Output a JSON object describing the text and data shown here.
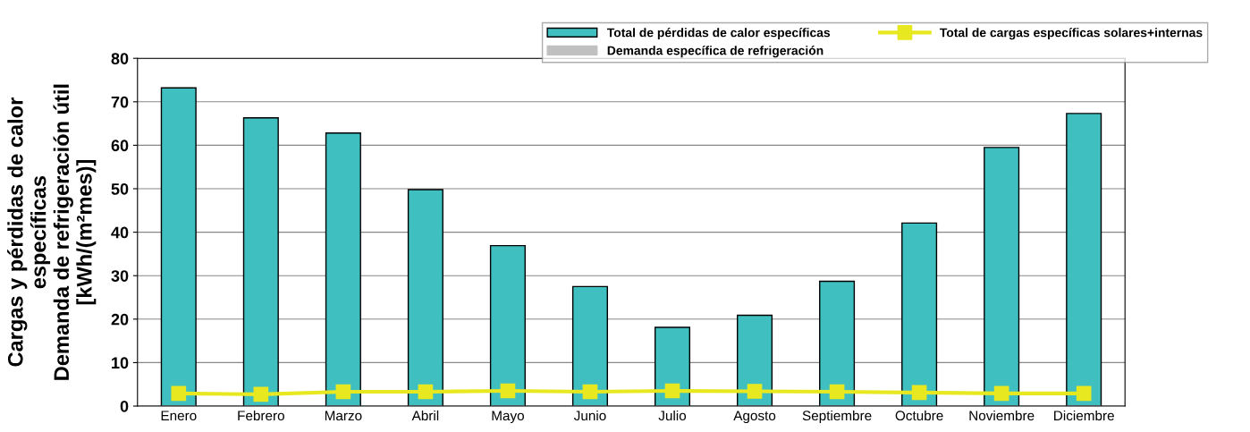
{
  "chart_data": {
    "type": "bar",
    "ylabel": "Cargas y pérdidas de calor\nespecíficas\nDemanda de refrigeración útil\n[kWh/(m²mes)]",
    "categories": [
      "Enero",
      "Febrero",
      "Marzo",
      "Abril",
      "Mayo",
      "Junio",
      "Julio",
      "Agosto",
      "Septiembre",
      "Octubre",
      "Noviembre",
      "Diciembre"
    ],
    "series": [
      {
        "name": "Total de pérdidas de calor específicas",
        "color": "#40bfc1",
        "values": [
          73.2,
          66.3,
          62.8,
          49.8,
          36.9,
          27.5,
          18.1,
          20.9,
          28.7,
          42.1,
          59.5,
          67.3
        ]
      },
      {
        "name": "Demanda específica de refrigeración",
        "color": "#c0c0c0",
        "values": [
          0,
          0,
          0,
          0,
          0,
          0,
          0,
          0,
          0,
          0,
          0,
          0
        ]
      },
      {
        "name": "Total de cargas específicas solares+internas",
        "type": "line",
        "color": "#e8e820",
        "marker": "square",
        "values": [
          2.9,
          2.7,
          3.3,
          3.3,
          3.5,
          3.3,
          3.5,
          3.4,
          3.3,
          3.1,
          2.9,
          2.9
        ]
      }
    ],
    "ylim": [
      0,
      80
    ],
    "yticks": [
      0,
      10,
      20,
      30,
      40,
      50,
      60,
      70,
      80
    ],
    "grid": "y",
    "legend": "top right"
  }
}
